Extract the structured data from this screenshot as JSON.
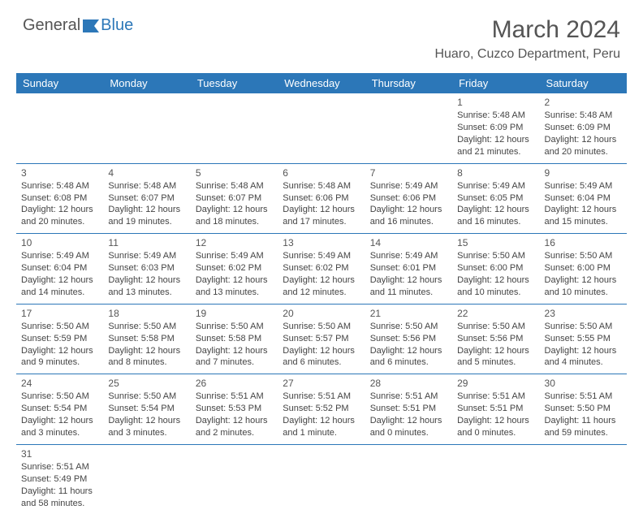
{
  "brand": {
    "part1": "General",
    "part2": "Blue"
  },
  "title": "March 2024",
  "location": "Huaro, Cuzco Department, Peru",
  "colors": {
    "accent": "#2c77b8",
    "text": "#555",
    "cell_text": "#444"
  },
  "weekdays": [
    "Sunday",
    "Monday",
    "Tuesday",
    "Wednesday",
    "Thursday",
    "Friday",
    "Saturday"
  ],
  "weeks": [
    [
      null,
      null,
      null,
      null,
      null,
      {
        "n": "1",
        "sr": "Sunrise: 5:48 AM",
        "ss": "Sunset: 6:09 PM",
        "d1": "Daylight: 12 hours",
        "d2": "and 21 minutes."
      },
      {
        "n": "2",
        "sr": "Sunrise: 5:48 AM",
        "ss": "Sunset: 6:09 PM",
        "d1": "Daylight: 12 hours",
        "d2": "and 20 minutes."
      }
    ],
    [
      {
        "n": "3",
        "sr": "Sunrise: 5:48 AM",
        "ss": "Sunset: 6:08 PM",
        "d1": "Daylight: 12 hours",
        "d2": "and 20 minutes."
      },
      {
        "n": "4",
        "sr": "Sunrise: 5:48 AM",
        "ss": "Sunset: 6:07 PM",
        "d1": "Daylight: 12 hours",
        "d2": "and 19 minutes."
      },
      {
        "n": "5",
        "sr": "Sunrise: 5:48 AM",
        "ss": "Sunset: 6:07 PM",
        "d1": "Daylight: 12 hours",
        "d2": "and 18 minutes."
      },
      {
        "n": "6",
        "sr": "Sunrise: 5:48 AM",
        "ss": "Sunset: 6:06 PM",
        "d1": "Daylight: 12 hours",
        "d2": "and 17 minutes."
      },
      {
        "n": "7",
        "sr": "Sunrise: 5:49 AM",
        "ss": "Sunset: 6:06 PM",
        "d1": "Daylight: 12 hours",
        "d2": "and 16 minutes."
      },
      {
        "n": "8",
        "sr": "Sunrise: 5:49 AM",
        "ss": "Sunset: 6:05 PM",
        "d1": "Daylight: 12 hours",
        "d2": "and 16 minutes."
      },
      {
        "n": "9",
        "sr": "Sunrise: 5:49 AM",
        "ss": "Sunset: 6:04 PM",
        "d1": "Daylight: 12 hours",
        "d2": "and 15 minutes."
      }
    ],
    [
      {
        "n": "10",
        "sr": "Sunrise: 5:49 AM",
        "ss": "Sunset: 6:04 PM",
        "d1": "Daylight: 12 hours",
        "d2": "and 14 minutes."
      },
      {
        "n": "11",
        "sr": "Sunrise: 5:49 AM",
        "ss": "Sunset: 6:03 PM",
        "d1": "Daylight: 12 hours",
        "d2": "and 13 minutes."
      },
      {
        "n": "12",
        "sr": "Sunrise: 5:49 AM",
        "ss": "Sunset: 6:02 PM",
        "d1": "Daylight: 12 hours",
        "d2": "and 13 minutes."
      },
      {
        "n": "13",
        "sr": "Sunrise: 5:49 AM",
        "ss": "Sunset: 6:02 PM",
        "d1": "Daylight: 12 hours",
        "d2": "and 12 minutes."
      },
      {
        "n": "14",
        "sr": "Sunrise: 5:49 AM",
        "ss": "Sunset: 6:01 PM",
        "d1": "Daylight: 12 hours",
        "d2": "and 11 minutes."
      },
      {
        "n": "15",
        "sr": "Sunrise: 5:50 AM",
        "ss": "Sunset: 6:00 PM",
        "d1": "Daylight: 12 hours",
        "d2": "and 10 minutes."
      },
      {
        "n": "16",
        "sr": "Sunrise: 5:50 AM",
        "ss": "Sunset: 6:00 PM",
        "d1": "Daylight: 12 hours",
        "d2": "and 10 minutes."
      }
    ],
    [
      {
        "n": "17",
        "sr": "Sunrise: 5:50 AM",
        "ss": "Sunset: 5:59 PM",
        "d1": "Daylight: 12 hours",
        "d2": "and 9 minutes."
      },
      {
        "n": "18",
        "sr": "Sunrise: 5:50 AM",
        "ss": "Sunset: 5:58 PM",
        "d1": "Daylight: 12 hours",
        "d2": "and 8 minutes."
      },
      {
        "n": "19",
        "sr": "Sunrise: 5:50 AM",
        "ss": "Sunset: 5:58 PM",
        "d1": "Daylight: 12 hours",
        "d2": "and 7 minutes."
      },
      {
        "n": "20",
        "sr": "Sunrise: 5:50 AM",
        "ss": "Sunset: 5:57 PM",
        "d1": "Daylight: 12 hours",
        "d2": "and 6 minutes."
      },
      {
        "n": "21",
        "sr": "Sunrise: 5:50 AM",
        "ss": "Sunset: 5:56 PM",
        "d1": "Daylight: 12 hours",
        "d2": "and 6 minutes."
      },
      {
        "n": "22",
        "sr": "Sunrise: 5:50 AM",
        "ss": "Sunset: 5:56 PM",
        "d1": "Daylight: 12 hours",
        "d2": "and 5 minutes."
      },
      {
        "n": "23",
        "sr": "Sunrise: 5:50 AM",
        "ss": "Sunset: 5:55 PM",
        "d1": "Daylight: 12 hours",
        "d2": "and 4 minutes."
      }
    ],
    [
      {
        "n": "24",
        "sr": "Sunrise: 5:50 AM",
        "ss": "Sunset: 5:54 PM",
        "d1": "Daylight: 12 hours",
        "d2": "and 3 minutes."
      },
      {
        "n": "25",
        "sr": "Sunrise: 5:50 AM",
        "ss": "Sunset: 5:54 PM",
        "d1": "Daylight: 12 hours",
        "d2": "and 3 minutes."
      },
      {
        "n": "26",
        "sr": "Sunrise: 5:51 AM",
        "ss": "Sunset: 5:53 PM",
        "d1": "Daylight: 12 hours",
        "d2": "and 2 minutes."
      },
      {
        "n": "27",
        "sr": "Sunrise: 5:51 AM",
        "ss": "Sunset: 5:52 PM",
        "d1": "Daylight: 12 hours",
        "d2": "and 1 minute."
      },
      {
        "n": "28",
        "sr": "Sunrise: 5:51 AM",
        "ss": "Sunset: 5:51 PM",
        "d1": "Daylight: 12 hours",
        "d2": "and 0 minutes."
      },
      {
        "n": "29",
        "sr": "Sunrise: 5:51 AM",
        "ss": "Sunset: 5:51 PM",
        "d1": "Daylight: 12 hours",
        "d2": "and 0 minutes."
      },
      {
        "n": "30",
        "sr": "Sunrise: 5:51 AM",
        "ss": "Sunset: 5:50 PM",
        "d1": "Daylight: 11 hours",
        "d2": "and 59 minutes."
      }
    ],
    [
      {
        "n": "31",
        "sr": "Sunrise: 5:51 AM",
        "ss": "Sunset: 5:49 PM",
        "d1": "Daylight: 11 hours",
        "d2": "and 58 minutes."
      },
      null,
      null,
      null,
      null,
      null,
      null
    ]
  ]
}
